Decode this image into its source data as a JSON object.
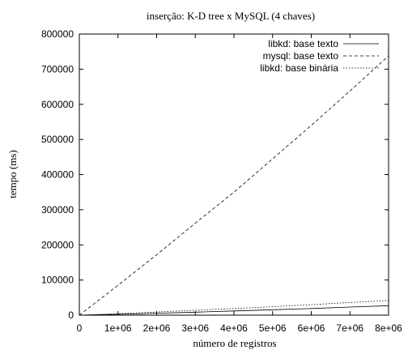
{
  "chart_data": {
    "type": "line",
    "title": "inserção: K-D tree x MySQL (4 chaves)",
    "xlabel": "número de registros",
    "ylabel": "tempo (ms)",
    "xlim": [
      0,
      8000000
    ],
    "ylim": [
      0,
      800000
    ],
    "x_ticks": [
      0,
      1000000,
      2000000,
      3000000,
      4000000,
      5000000,
      6000000,
      7000000,
      8000000
    ],
    "x_tick_labels": [
      "0",
      "1e+06",
      "2e+06",
      "3e+06",
      "4e+06",
      "5e+06",
      "6e+06",
      "7e+06",
      "8e+06"
    ],
    "y_ticks": [
      0,
      100000,
      200000,
      300000,
      400000,
      500000,
      600000,
      700000,
      800000
    ],
    "y_tick_labels": [
      "0",
      "100000",
      "200000",
      "300000",
      "400000",
      "500000",
      "600000",
      "700000",
      "800000"
    ],
    "grid": false,
    "legend_position": "top-right",
    "series": [
      {
        "name": "libkd: base texto",
        "style": "solid",
        "x": [
          0,
          1000000,
          2000000,
          3000000,
          4000000,
          5000000,
          6000000,
          7000000,
          8000000
        ],
        "y": [
          0,
          2500,
          5500,
          8500,
          12000,
          15500,
          19000,
          23000,
          27000
        ]
      },
      {
        "name": "mysql: base texto",
        "style": "dashed",
        "x": [
          0,
          1000000,
          2000000,
          3000000,
          4000000,
          5000000,
          6000000,
          7000000,
          8000000
        ],
        "y": [
          0,
          85000,
          172000,
          262000,
          350000,
          445000,
          540000,
          638000,
          738000
        ]
      },
      {
        "name": "libkd:  base binária",
        "style": "dotted",
        "x": [
          0,
          1000000,
          2000000,
          3000000,
          4000000,
          5000000,
          6000000,
          7000000,
          8000000
        ],
        "y": [
          0,
          4000,
          9000,
          14000,
          19000,
          24000,
          30000,
          36000,
          42000
        ]
      }
    ]
  }
}
